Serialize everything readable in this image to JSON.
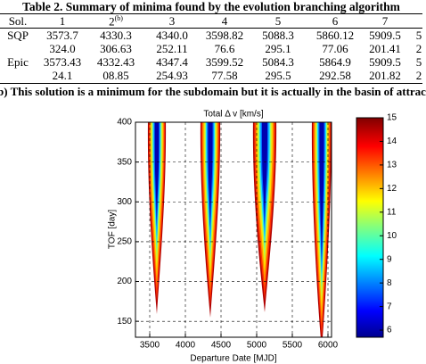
{
  "table": {
    "title": "Table 2. Summary of minima found by the evolution branching algorithm",
    "header": [
      "Sol.",
      "1",
      "2",
      "3",
      "4",
      "5",
      "6",
      "7"
    ],
    "header_note": "(b)",
    "rows": [
      {
        "label": "SQP",
        "cells": [
          "3573.7",
          "4330.3",
          "4340.0",
          "3598.82",
          "5088.3",
          "5860.12",
          "5909.5",
          "5"
        ]
      },
      {
        "cells": [
          "324.0",
          "306.63",
          "252.11",
          "76.6",
          "295.1",
          "77.06",
          "201.41",
          "2"
        ]
      },
      {
        "label": "Epic",
        "cells": [
          "3573.43",
          "4332.43",
          "4347.4",
          "3599.52",
          "5084.3",
          "5864.9",
          "5909.5",
          "5"
        ]
      },
      {
        "cells": [
          "24.1",
          "08.85",
          "254.93",
          "77.58",
          "295.5",
          "292.58",
          "201.82",
          "2"
        ]
      }
    ]
  },
  "footnote": "b) This solution is a minimum for the subdomain but it is actually in the basin of attrac",
  "chart_data": {
    "type": "contour",
    "title": "Total Δ v [km/s]",
    "x_label": "Departure Date [MJD]",
    "y_label": "TOF [day]",
    "xlim": [
      3300,
      6050
    ],
    "xticks": [
      3500,
      4000,
      4500,
      5000,
      5500,
      6000
    ],
    "ylim": [
      130,
      400
    ],
    "yticks": [
      150,
      200,
      250,
      300,
      350,
      400
    ],
    "clim": [
      5.7,
      15
    ],
    "cticks": [
      6,
      7,
      8,
      9,
      10,
      11,
      12,
      13,
      14,
      15
    ],
    "grid": true
  }
}
